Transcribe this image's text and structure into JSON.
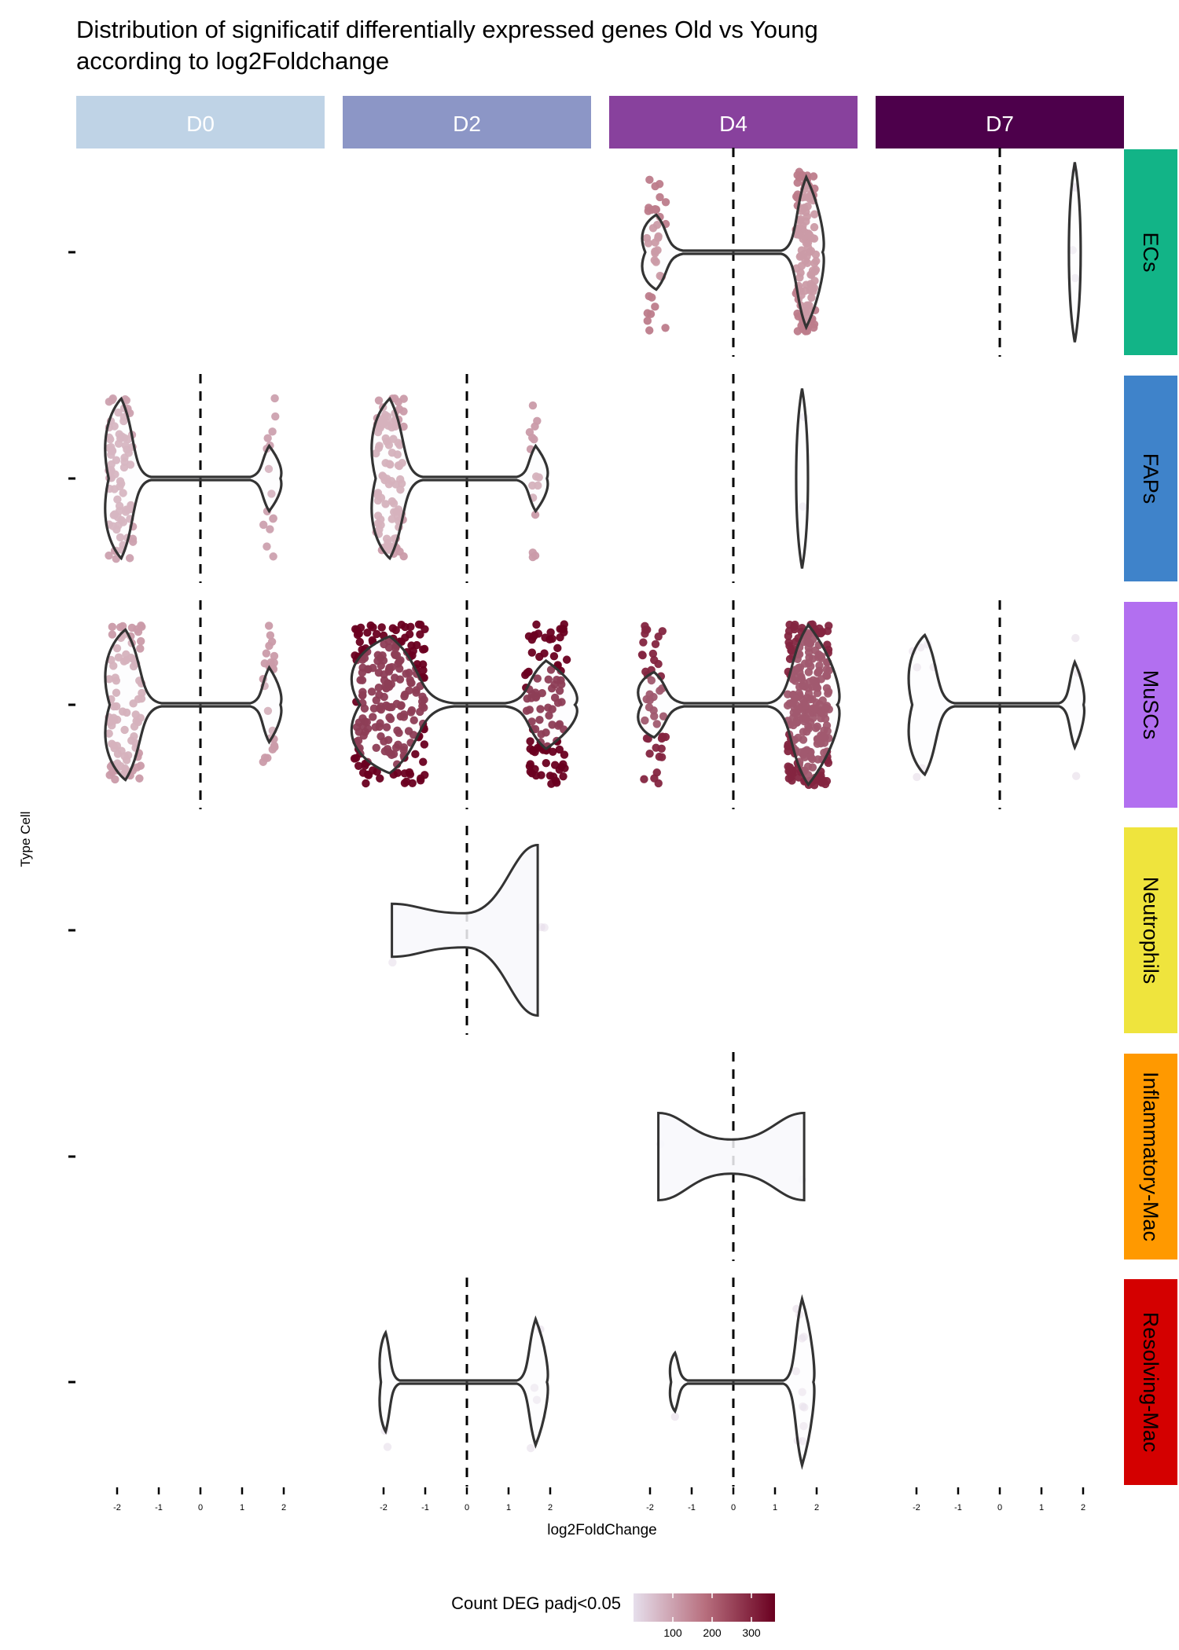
{
  "chart_data": {
    "type": "violin",
    "title": "Distribution of significatif differentially expressed genes Old vs Young\n according to log2Foldchange",
    "xlabel": "log2FoldChange",
    "ylabel": "Type Cell",
    "xlim": [
      -2,
      2
    ],
    "x_ticks": [
      -2,
      -1,
      0,
      1,
      2
    ],
    "reference_line_x": 0,
    "grid": false,
    "facet_columns": [
      {
        "label": "D0",
        "color": "#BFD3E6"
      },
      {
        "label": "D2",
        "color": "#8C96C6"
      },
      {
        "label": "D4",
        "color": "#88419D"
      },
      {
        "label": "D7",
        "color": "#4D004B"
      }
    ],
    "facet_rows": [
      {
        "label": "ECs",
        "color": "#12B487"
      },
      {
        "label": "FAPs",
        "color": "#3F83CA"
      },
      {
        "label": "MuSCs",
        "color": "#B26FF0"
      },
      {
        "label": "Neutrophils",
        "color": "#EFE43D"
      },
      {
        "label": "Inflammatory-Mac",
        "color": "#FF9900"
      },
      {
        "label": "Resolving-Mac",
        "color": "#D40000"
      }
    ],
    "panels": [
      {
        "row": "ECs",
        "col": "D4",
        "count": 160,
        "down_range": [
          -2.1,
          -1.6
        ],
        "down_frac": 0.22,
        "up_range": [
          1.5,
          2.0
        ]
      },
      {
        "row": "ECs",
        "col": "D7",
        "count": 5,
        "down_range": null,
        "down_frac": 0,
        "up_range": [
          1.75,
          1.85
        ]
      },
      {
        "row": "FAPs",
        "col": "D0",
        "count": 100,
        "down_range": [
          -2.2,
          -1.6
        ],
        "down_frac": 0.85,
        "up_range": [
          1.5,
          1.8
        ]
      },
      {
        "row": "FAPs",
        "col": "D2",
        "count": 110,
        "down_range": [
          -2.2,
          -1.5
        ],
        "down_frac": 0.85,
        "up_range": [
          1.5,
          1.8
        ]
      },
      {
        "row": "FAPs",
        "col": "D4",
        "count": 2,
        "down_range": null,
        "down_frac": 0,
        "up_range": [
          1.6,
          1.7
        ]
      },
      {
        "row": "MuSCs",
        "col": "D0",
        "count": 110,
        "down_range": [
          -2.2,
          -1.4
        ],
        "down_frac": 0.78,
        "up_range": [
          1.5,
          1.8
        ]
      },
      {
        "row": "MuSCs",
        "col": "D2",
        "count": 360,
        "down_range": [
          -2.7,
          -1.0
        ],
        "down_frac": 0.68,
        "up_range": [
          1.4,
          2.4
        ]
      },
      {
        "row": "MuSCs",
        "col": "D4",
        "count": 300,
        "down_range": [
          -2.2,
          -1.6
        ],
        "down_frac": 0.15,
        "up_range": [
          1.3,
          2.3
        ]
      },
      {
        "row": "MuSCs",
        "col": "D7",
        "count": 10,
        "down_range": [
          -2.1,
          -1.5
        ],
        "down_frac": 0.7,
        "up_range": [
          1.7,
          1.9
        ]
      },
      {
        "row": "Neutrophils",
        "col": "D2",
        "count": 3,
        "down_range": [
          -1.8,
          -1.7
        ],
        "down_frac": 0.34,
        "up_range": [
          1.7,
          1.9
        ]
      },
      {
        "row": "Inflammatory-Mac",
        "col": "D4",
        "count": 2,
        "down_range": [
          -1.8,
          -1.7
        ],
        "down_frac": 0.5,
        "up_range": [
          1.6,
          1.7
        ]
      },
      {
        "row": "Resolving-Mac",
        "col": "D2",
        "count": 6,
        "down_range": [
          -2.0,
          -1.9
        ],
        "down_frac": 0.4,
        "up_range": [
          1.5,
          1.8
        ]
      },
      {
        "row": "Resolving-Mac",
        "col": "D4",
        "count": 12,
        "down_range": [
          -1.4,
          -1.4
        ],
        "down_frac": 0.1,
        "up_range": [
          1.5,
          1.8
        ]
      }
    ],
    "legend": {
      "title": "Count DEG padj<0.05",
      "position": "bottom",
      "breaks": [
        100,
        200,
        300
      ],
      "range": [
        0,
        360
      ],
      "low_color": "#E6DFEC",
      "high_color": "#6A0020"
    }
  }
}
